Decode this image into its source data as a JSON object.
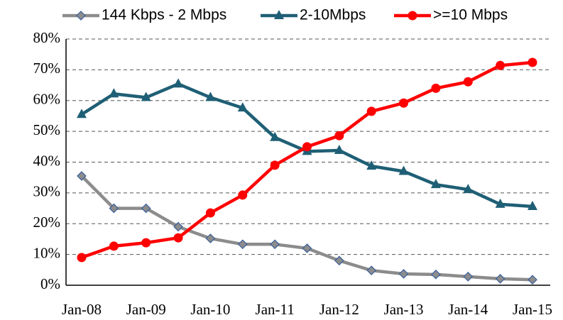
{
  "chart_data": {
    "type": "line",
    "categories": [
      "Jan-08",
      null,
      "Jan-09",
      null,
      "Jan-10",
      null,
      "Jan-11",
      null,
      "Jan-12",
      null,
      "Jan-13",
      null,
      "Jan-14",
      null,
      "Jan-15"
    ],
    "series": [
      {
        "name": "144 Kbps - 2 Mbps",
        "color": "#8c8c8c",
        "marker": "diamond",
        "values": [
          35.5,
          25,
          25,
          19,
          15.2,
          13.3,
          13.3,
          12,
          8,
          4.8,
          3.7,
          3.5,
          2.8,
          2.1,
          1.8
        ]
      },
      {
        "name": "2-10Mbps",
        "color": "#1f5f75",
        "marker": "triangle",
        "values": [
          55.5,
          62.2,
          61,
          65.4,
          61,
          57.6,
          48,
          43.5,
          43.8,
          38.7,
          37,
          32.7,
          31.1,
          26.3,
          25.6
        ]
      },
      {
        "name": ">=10 Mbps",
        "color": "#ff0000",
        "marker": "circle",
        "values": [
          9,
          12.7,
          13.8,
          15.4,
          23.5,
          29.3,
          39,
          45,
          48.6,
          56.5,
          59.2,
          64,
          66.1,
          71.4,
          72.4
        ]
      }
    ],
    "ylim": [
      0,
      80
    ],
    "yticks": [
      {
        "value": 0,
        "label": "0%"
      },
      {
        "value": 10,
        "label": "10%"
      },
      {
        "value": 20,
        "label": "20%"
      },
      {
        "value": 30,
        "label": "30%"
      },
      {
        "value": 40,
        "label": "40%"
      },
      {
        "value": 50,
        "label": "50%"
      },
      {
        "value": 60,
        "label": "60%"
      },
      {
        "value": 70,
        "label": "70%"
      },
      {
        "value": 80,
        "label": "80%"
      }
    ],
    "grid": true,
    "legend": "top"
  }
}
